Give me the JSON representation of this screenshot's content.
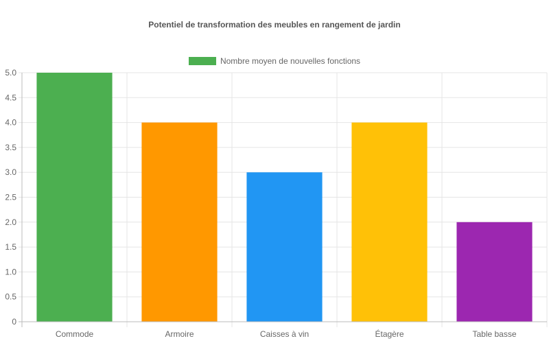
{
  "chart_data": {
    "type": "bar",
    "title": "Potentiel de transformation des meubles en rangement de jardin",
    "categories": [
      "Commode",
      "Armoire",
      "Caisses à vin",
      "Étagère",
      "Table basse"
    ],
    "series": [
      {
        "name": "Nombre moyen de nouvelles fonctions",
        "values": [
          5,
          4,
          3,
          4,
          2
        ]
      }
    ],
    "bar_colors": [
      "#4CAF50",
      "#FF9800",
      "#2196F3",
      "#FFC107",
      "#9C27B0"
    ],
    "legend_color": "#4CAF50",
    "legend_position": "top",
    "ylim": [
      0,
      5
    ],
    "y_ticks": [
      "0",
      "0.5",
      "1.0",
      "1.5",
      "2.0",
      "2.5",
      "3.0",
      "3.5",
      "4.0",
      "4.5",
      "5.0"
    ],
    "xlabel": "",
    "ylabel": "",
    "grid": true
  }
}
